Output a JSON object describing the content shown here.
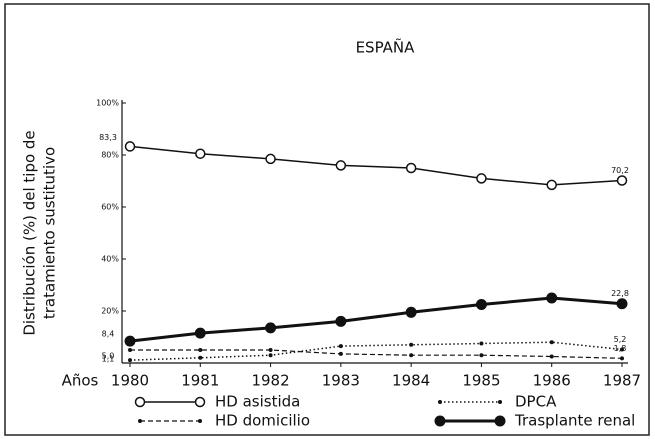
{
  "chart_data": {
    "type": "line",
    "title": "ESPAÑA",
    "ylabel": [
      "Distribución (%) del tipo de",
      "tratamiento sustitutivo"
    ],
    "xlabel": "Años",
    "categories": [
      "1980",
      "1981",
      "1982",
      "1983",
      "1984",
      "1985",
      "1986",
      "1987"
    ],
    "ylim": [
      0,
      100
    ],
    "yticks": [
      {
        "value": 20,
        "label": "20%"
      },
      {
        "value": 40,
        "label": "40%"
      },
      {
        "value": 60,
        "label": "60%"
      },
      {
        "value": 80,
        "label": "80%"
      },
      {
        "value": 100,
        "label": "100%"
      }
    ],
    "series": [
      {
        "name": "HD asistida",
        "color": "#111111",
        "style": "solid",
        "marker": "open",
        "values": [
          83.3,
          80.5,
          78.5,
          76,
          75,
          71,
          68.5,
          70.2
        ],
        "value_labels": [
          "83,3",
          null,
          null,
          null,
          null,
          null,
          null,
          "70,2"
        ]
      },
      {
        "name": "DPCA",
        "color": "#111111",
        "style": "dotted",
        "marker": "small",
        "values": [
          1.1,
          2,
          3,
          6.5,
          7,
          7.5,
          8,
          5.2
        ],
        "value_labels": [
          "1,1",
          null,
          null,
          null,
          null,
          null,
          null,
          "5,2"
        ]
      },
      {
        "name": "HD domicilio",
        "color": "#111111",
        "style": "dashed",
        "marker": "small",
        "values": [
          5.0,
          5,
          5,
          3.5,
          3,
          3,
          2.5,
          1.8
        ],
        "value_labels": [
          "5,0",
          null,
          null,
          null,
          null,
          null,
          null,
          "1,8"
        ]
      },
      {
        "name": "Trasplante renal",
        "color": "#111111",
        "style": "thick",
        "marker": "filled",
        "values": [
          8.4,
          11.5,
          13.5,
          16,
          19.5,
          22.5,
          25,
          22.8
        ],
        "value_labels": [
          "8,4",
          null,
          null,
          null,
          null,
          null,
          null,
          "22,8"
        ]
      }
    ]
  }
}
